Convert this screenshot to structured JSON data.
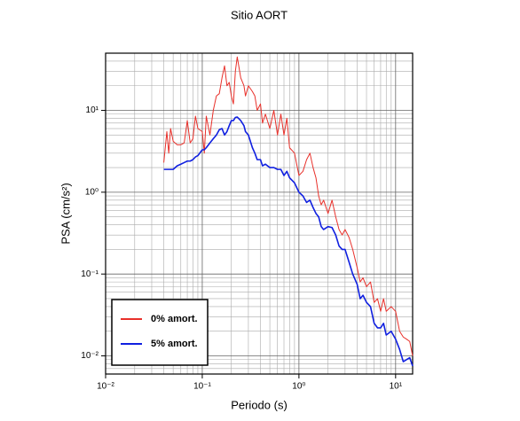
{
  "chart_data": {
    "type": "line",
    "title": "Sitio AORT",
    "x_label": "Periodo (s)",
    "y_label": "PSA (cm/s²)",
    "x_log": true,
    "y_log": true,
    "grid": true,
    "legend": "lower left",
    "xlim": [
      0.01,
      15
    ],
    "ylim": [
      0.006,
      50
    ],
    "xticks": [
      {
        "value": 0.01,
        "label": "10⁻²"
      },
      {
        "value": 0.1,
        "label": "10⁻¹"
      },
      {
        "value": 1,
        "label": "10⁰"
      },
      {
        "value": 10,
        "label": "10¹"
      }
    ],
    "yticks": [
      {
        "value": 0.01,
        "label": "10⁻²"
      },
      {
        "value": 0.1,
        "label": "10⁻¹"
      },
      {
        "value": 1,
        "label": "10⁰"
      },
      {
        "value": 10,
        "label": "10¹"
      }
    ],
    "xminorticks": [
      0.02,
      0.03,
      0.04,
      0.05,
      0.06,
      0.07,
      0.08,
      0.09,
      0.2,
      0.3,
      0.4,
      0.5,
      0.6,
      0.7,
      0.8,
      0.9,
      2,
      3,
      4,
      5,
      6,
      7,
      8,
      9
    ],
    "yminorticks": [
      0.007,
      0.008,
      0.009,
      0.02,
      0.03,
      0.04,
      0.05,
      0.06,
      0.07,
      0.08,
      0.09,
      0.2,
      0.3,
      0.4,
      0.5,
      0.6,
      0.7,
      0.8,
      0.9,
      2,
      3,
      4,
      5,
      6,
      7,
      8,
      9,
      20,
      30,
      40
    ],
    "x": [
      0.04,
      0.043,
      0.045,
      0.047,
      0.05,
      0.055,
      0.06,
      0.065,
      0.07,
      0.075,
      0.08,
      0.085,
      0.09,
      0.1,
      0.105,
      0.11,
      0.12,
      0.13,
      0.14,
      0.15,
      0.16,
      0.17,
      0.18,
      0.19,
      0.2,
      0.21,
      0.22,
      0.23,
      0.25,
      0.27,
      0.28,
      0.3,
      0.33,
      0.35,
      0.37,
      0.4,
      0.42,
      0.45,
      0.5,
      0.55,
      0.6,
      0.65,
      0.7,
      0.75,
      0.8,
      0.9,
      1.0,
      1.1,
      1.2,
      1.3,
      1.4,
      1.5,
      1.6,
      1.7,
      1.8,
      2.0,
      2.2,
      2.4,
      2.6,
      2.8,
      3.0,
      3.3,
      3.6,
      4.0,
      4.3,
      4.6,
      5.0,
      5.5,
      6.0,
      6.5,
      7.0,
      7.5,
      8.0,
      9.0,
      10,
      11,
      12,
      13,
      14,
      15
    ],
    "series": [
      {
        "name": "0% amort.",
        "color": "#e8302a",
        "width": 1,
        "values": [
          2.3,
          5.5,
          3.0,
          6.0,
          4.2,
          3.8,
          3.8,
          4.0,
          7.5,
          4.0,
          4.5,
          8.5,
          6.0,
          5.5,
          3.0,
          8.5,
          5.0,
          10,
          15,
          16,
          25,
          35,
          20,
          22,
          15,
          12,
          30,
          45,
          25,
          20,
          15,
          20,
          17,
          15,
          10,
          12,
          7,
          9,
          6,
          10,
          5,
          9,
          5,
          8,
          3.5,
          3.0,
          1.6,
          1.8,
          2.5,
          3.0,
          2.0,
          1.5,
          0.9,
          0.7,
          0.8,
          0.55,
          0.8,
          0.5,
          0.35,
          0.3,
          0.35,
          0.28,
          0.2,
          0.12,
          0.08,
          0.09,
          0.07,
          0.08,
          0.045,
          0.05,
          0.035,
          0.05,
          0.035,
          0.04,
          0.035,
          0.02,
          0.017,
          0.016,
          0.015,
          0.01
        ]
      },
      {
        "name": "5% amort.",
        "color": "#1020e0",
        "width": 1.6,
        "values": [
          1.9,
          1.9,
          1.9,
          1.9,
          1.9,
          2.1,
          2.2,
          2.3,
          2.4,
          2.4,
          2.5,
          2.7,
          2.8,
          3.3,
          3.3,
          3.5,
          4.0,
          4.5,
          5.0,
          5.8,
          6.0,
          5.0,
          5.5,
          6.5,
          7.5,
          7.5,
          8.2,
          8.3,
          7.5,
          6.5,
          5.5,
          5.0,
          3.5,
          3.0,
          2.5,
          2.5,
          2.1,
          2.2,
          2.0,
          2.0,
          1.9,
          1.9,
          1.6,
          1.8,
          1.5,
          1.3,
          1.0,
          0.9,
          0.75,
          0.8,
          0.65,
          0.55,
          0.5,
          0.38,
          0.35,
          0.38,
          0.37,
          0.3,
          0.22,
          0.2,
          0.2,
          0.14,
          0.1,
          0.075,
          0.05,
          0.055,
          0.045,
          0.04,
          0.025,
          0.022,
          0.022,
          0.025,
          0.018,
          0.02,
          0.016,
          0.012,
          0.0085,
          0.009,
          0.0095,
          0.0075
        ]
      }
    ]
  }
}
